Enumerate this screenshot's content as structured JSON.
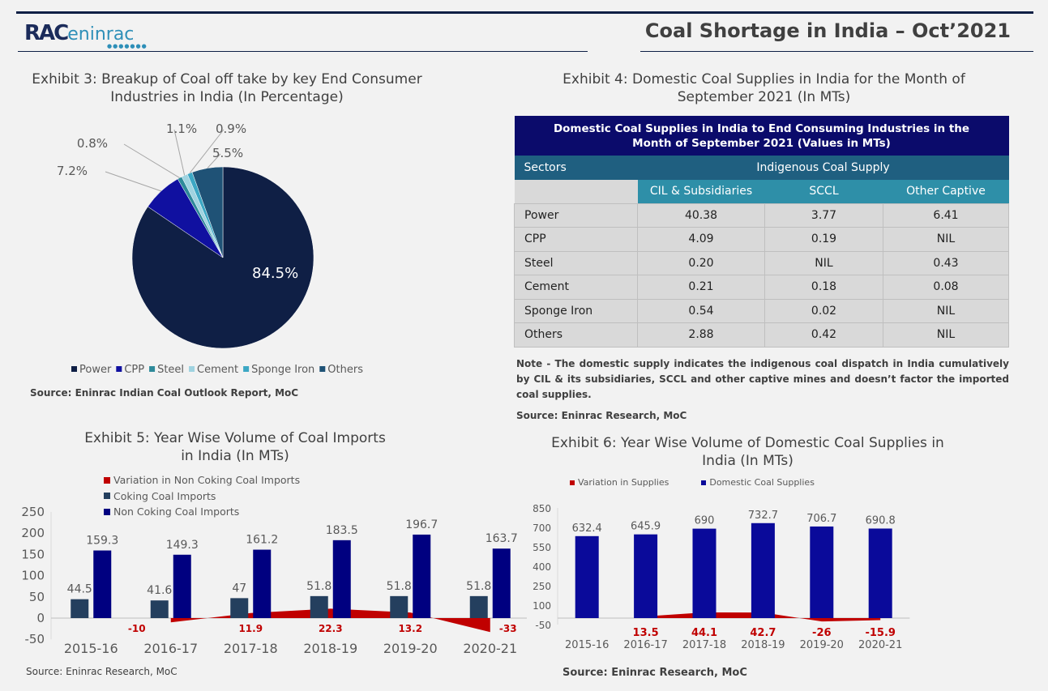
{
  "header": {
    "logo_text": "RAC",
    "logo_sub": "eninrac",
    "title": "Coal Shortage in India – Oct’2021"
  },
  "exhibit3": {
    "title_line1": "Exhibit 3: Breakup of Coal off take by key End Consumer",
    "title_line2": "Industries in India (In Percentage)",
    "source": "Source: Eninrac Indian Coal Outlook Report, MoC",
    "chart_data": {
      "type": "pie",
      "labels": [
        "Power",
        "CPP",
        "Steel",
        "Cement",
        "Sponge Iron",
        "Others"
      ],
      "values": [
        84.5,
        7.2,
        0.8,
        1.1,
        0.9,
        5.5
      ],
      "data_labels": [
        "84.5%",
        "7.2%",
        "0.8%",
        "1.1%",
        "0.9%",
        "5.5%"
      ],
      "colors": [
        "#0f1f45",
        "#1010a0",
        "#2e8a9a",
        "#9fd3e0",
        "#3ca7c4",
        "#1f5276"
      ],
      "legend": "bottom"
    }
  },
  "exhibit4": {
    "title_line1": "Exhibit 4: Domestic Coal Supplies in India for the Month of",
    "title_line2": "September 2021 (In MTs)",
    "table": {
      "title": "Domestic Coal Supplies in India to End Consuming Industries in the Month of September 2021 (Values in MTs)",
      "col_sectors": "Sectors",
      "col_group": "Indigenous Coal Supply",
      "sub_headers": [
        "CIL & Subsidiaries",
        "SCCL",
        "Other Captive"
      ],
      "rows": [
        [
          "Power",
          "40.38",
          "3.77",
          "6.41"
        ],
        [
          "CPP",
          "4.09",
          "0.19",
          "NIL"
        ],
        [
          "Steel",
          "0.20",
          "NIL",
          "0.43"
        ],
        [
          "Cement",
          "0.21",
          "0.18",
          "0.08"
        ],
        [
          "Sponge Iron",
          "0.54",
          "0.02",
          "NIL"
        ],
        [
          "Others",
          "2.88",
          "0.42",
          "NIL"
        ]
      ]
    },
    "note": "Note - The domestic supply indicates the indigenous coal dispatch in India cumulatively by CIL & its subsidiaries, SCCL and other captive mines and doesn’t factor the imported coal supplies.",
    "source": "Source: Eninrac Research, MoC"
  },
  "exhibit5": {
    "title_line1": "Exhibit 5: Year Wise Volume of Coal Imports",
    "title_line2": "in India (In MTs)",
    "source": "Source: Eninrac Research, MoC",
    "chart_data": {
      "type": "bar",
      "categories": [
        "2015-16",
        "2016-17",
        "2017-18",
        "2018-19",
        "2019-20",
        "2020-21"
      ],
      "ylim": [
        -50,
        250
      ],
      "yticks": [
        250,
        200,
        150,
        100,
        50,
        0,
        -50
      ],
      "legend": "top",
      "series": [
        {
          "name": "Variation in Non Coking Coal Imports",
          "type": "area",
          "color": "#c00000",
          "values": [
            null,
            -10,
            11.9,
            22.3,
            13.2,
            -33
          ]
        },
        {
          "name": "Coking Coal Imports",
          "color": "#243f5e",
          "values": [
            44.5,
            41.6,
            47,
            51.8,
            51.8,
            51.8
          ]
        },
        {
          "name": "Non Coking Coal Imports",
          "color": "#000080",
          "values": [
            159.3,
            149.3,
            161.2,
            183.5,
            196.7,
            163.7
          ]
        }
      ]
    }
  },
  "exhibit6": {
    "title_line1": "Exhibit 6: Year Wise Volume of Domestic Coal Supplies in",
    "title_line2": "India (In MTs)",
    "source": "Source: Eninrac Research, MoC",
    "chart_data": {
      "type": "bar",
      "categories": [
        "2015-16",
        "2016-17",
        "2017-18",
        "2018-19",
        "2019-20",
        "2020-21"
      ],
      "ylim": [
        -50,
        850
      ],
      "yticks": [
        850,
        700,
        550,
        400,
        250,
        100,
        -50
      ],
      "legend": "top",
      "series": [
        {
          "name": "Variation in Supplies",
          "type": "area",
          "color": "#c00000",
          "values": [
            null,
            13.5,
            44.1,
            42.7,
            -26,
            -15.9
          ]
        },
        {
          "name": "Domestic Coal Supplies",
          "color": "#0a0a9a",
          "values": [
            632.4,
            645.9,
            690,
            732.7,
            706.7,
            690.8
          ]
        }
      ]
    }
  }
}
